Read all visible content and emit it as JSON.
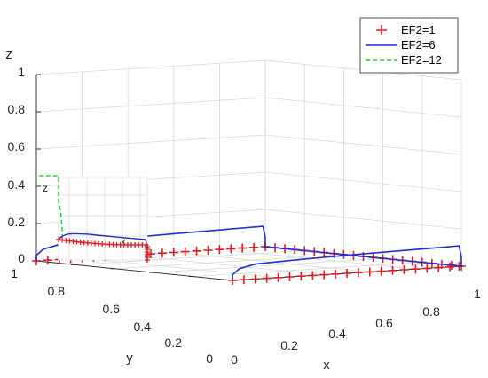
{
  "chart_data": {
    "type": "line",
    "projection": "3d",
    "title": "",
    "xlabel": "x",
    "ylabel": "y",
    "zlabel": "z",
    "xlim": [
      0,
      1
    ],
    "ylim": [
      0,
      1
    ],
    "zlim": [
      0,
      1
    ],
    "x_ticks": [
      "0",
      "0.2",
      "0.4",
      "0.6",
      "0.8",
      "1"
    ],
    "y_ticks": [
      "0",
      "0.2",
      "0.4",
      "0.6",
      "0.8",
      "1"
    ],
    "z_ticks": [
      "0",
      "0.2",
      "0.4",
      "0.6",
      "0.8",
      "1"
    ],
    "grid": true,
    "legend_position": "top-right",
    "series": [
      {
        "name": "EF2=1",
        "style": "markers",
        "marker": "+",
        "color": "#e41a1c",
        "points": [
          [
            0.0,
            0.0,
            0.0
          ],
          [
            0.05,
            0.0,
            0.0
          ],
          [
            0.1,
            0.0,
            0.0
          ],
          [
            0.15,
            0.0,
            0.0
          ],
          [
            0.2,
            0.0,
            0.0
          ],
          [
            0.25,
            0.0,
            0.0
          ],
          [
            0.3,
            0.0,
            0.0
          ],
          [
            0.35,
            0.0,
            0.0
          ],
          [
            0.4,
            0.0,
            0.0
          ],
          [
            0.45,
            0.0,
            0.0
          ],
          [
            0.5,
            0.0,
            0.0
          ],
          [
            0.55,
            0.0,
            0.0
          ],
          [
            0.6,
            0.0,
            0.0
          ],
          [
            0.65,
            0.0,
            0.0
          ],
          [
            0.7,
            0.0,
            0.0
          ],
          [
            0.75,
            0.0,
            0.0
          ],
          [
            0.8,
            0.0,
            0.0
          ],
          [
            0.85,
            0.0,
            0.0
          ],
          [
            0.9,
            0.0,
            0.0
          ],
          [
            0.95,
            0.0,
            0.0
          ],
          [
            0.99,
            0.0,
            0.0
          ],
          [
            1.0,
            0.0,
            0.0
          ],
          [
            1.0,
            0.05,
            0.0
          ],
          [
            1.0,
            0.1,
            0.0
          ],
          [
            1.0,
            0.15,
            0.0
          ],
          [
            1.0,
            0.2,
            0.0
          ],
          [
            1.0,
            0.25,
            0.0
          ],
          [
            1.0,
            0.3,
            0.0
          ],
          [
            1.0,
            0.35,
            0.0
          ],
          [
            1.0,
            0.4,
            0.0
          ],
          [
            1.0,
            0.45,
            0.0
          ],
          [
            1.0,
            0.5,
            0.0
          ],
          [
            1.0,
            0.55,
            0.0
          ],
          [
            1.0,
            0.6,
            0.0
          ],
          [
            1.0,
            0.65,
            0.0
          ],
          [
            1.0,
            0.7,
            0.0
          ],
          [
            1.0,
            0.75,
            0.0
          ],
          [
            1.0,
            0.8,
            0.0
          ],
          [
            1.0,
            0.85,
            0.0
          ],
          [
            1.0,
            0.9,
            0.0
          ],
          [
            1.0,
            0.95,
            0.0
          ],
          [
            1.0,
            1.0,
            0.0
          ],
          [
            0.95,
            1.0,
            0.0
          ],
          [
            0.9,
            1.0,
            0.0
          ],
          [
            0.85,
            1.0,
            0.0
          ],
          [
            0.8,
            1.0,
            0.0
          ],
          [
            0.75,
            1.0,
            0.0
          ],
          [
            0.7,
            1.0,
            0.0
          ],
          [
            0.65,
            1.0,
            0.0
          ],
          [
            0.6,
            1.0,
            0.0
          ],
          [
            0.55,
            1.0,
            0.0
          ],
          [
            0.5,
            1.0,
            0.0
          ],
          [
            0.45,
            1.0,
            0.0
          ],
          [
            0.4,
            1.0,
            0.0
          ],
          [
            0.35,
            1.0,
            0.0
          ],
          [
            0.3,
            1.0,
            0.0
          ],
          [
            0.25,
            1.0,
            0.0
          ],
          [
            0.2,
            1.0,
            0.0
          ],
          [
            0.15,
            1.0,
            0.0
          ],
          [
            0.1,
            1.0,
            0.0
          ],
          [
            0.05,
            1.0,
            0.0
          ],
          [
            0.0,
            1.0,
            0.0
          ]
        ]
      },
      {
        "name": "EF2=6",
        "style": "solid",
        "color": "#1f2ed6",
        "points": [
          [
            0.0,
            0.0,
            0.0
          ],
          [
            0.0,
            0.0,
            0.03
          ],
          [
            0.03,
            0.0,
            0.06
          ],
          [
            0.1,
            0.0,
            0.08
          ],
          [
            0.3,
            0.0,
            0.09
          ],
          [
            0.6,
            0.0,
            0.1
          ],
          [
            0.99,
            0.0,
            0.11
          ],
          [
            1.0,
            0.0,
            0.05
          ],
          [
            1.0,
            0.0,
            0.0
          ],
          [
            1.0,
            0.5,
            0.0
          ],
          [
            1.0,
            1.0,
            0.0
          ],
          [
            1.0,
            1.0,
            0.05
          ],
          [
            0.99,
            1.0,
            0.11
          ],
          [
            0.6,
            1.0,
            0.1
          ],
          [
            0.3,
            1.0,
            0.09
          ],
          [
            0.1,
            1.0,
            0.08
          ],
          [
            0.03,
            1.0,
            0.06
          ],
          [
            0.0,
            1.0,
            0.03
          ],
          [
            0.0,
            1.0,
            0.0
          ]
        ]
      },
      {
        "name": "EF2=12",
        "style": "dashed",
        "color": "#22dd22",
        "points": [
          [
            0.0,
            0.0,
            0.0
          ],
          [
            0.0,
            0.0,
            0.0
          ],
          [
            0.0,
            0.0,
            0.0
          ],
          [
            0.0,
            0.0,
            0.0
          ],
          [
            0.0,
            0.0,
            0.0
          ],
          [
            0.0,
            0.0,
            0.0
          ],
          [
            0.0,
            0.0,
            0.0
          ],
          [
            0.0,
            0.0,
            0.0
          ],
          [
            0.0,
            0.0,
            0.0
          ],
          [
            0.0,
            0.0,
            0.0
          ],
          [
            0.0,
            0.0,
            0.0
          ],
          [
            0.0,
            0.0,
            0.0
          ]
        ]
      }
    ]
  }
}
